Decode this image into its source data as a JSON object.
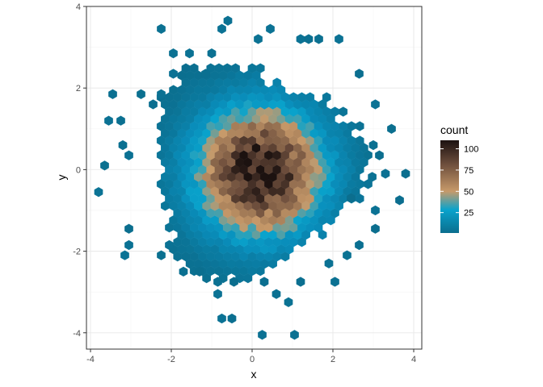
{
  "chart_data": {
    "type": "hexbin",
    "xlabel": "x",
    "ylabel": "y",
    "xlim": [
      -4.1,
      4.2
    ],
    "ylim": [
      -4.4,
      4.0
    ],
    "x_ticks": [
      -4,
      -2,
      0,
      2,
      4
    ],
    "y_ticks": [
      -4,
      -2,
      0,
      2,
      4
    ],
    "x_tick_labels": [
      "-4",
      "-2",
      "0",
      "2",
      "4"
    ],
    "y_tick_labels": [
      "-4",
      "-2",
      "0",
      "2",
      "4"
    ],
    "grid": true,
    "legend": {
      "title": "count",
      "placement": "right",
      "min": 1,
      "max": 110,
      "breaks": [
        25,
        50,
        75,
        100
      ],
      "break_labels": [
        "25",
        "50",
        "75",
        "100"
      ]
    },
    "colors": {
      "low": "#0b6e8e",
      "mid_low": "#09a3cc",
      "mid": "#c79a6a",
      "mid_high": "#6b4c3b",
      "high": "#1c1210"
    },
    "peak": {
      "x": 0.2,
      "y": -0.05,
      "count": 110
    },
    "hex_width": 0.205,
    "outlier_hexes": [
      [
        -2.25,
        3.45
      ],
      [
        -0.6,
        3.65
      ],
      [
        0.45,
        3.45
      ],
      [
        0.15,
        3.2
      ],
      [
        -0.75,
        3.45
      ],
      [
        1.2,
        3.2
      ],
      [
        1.65,
        3.2
      ],
      [
        2.15,
        3.2
      ],
      [
        1.4,
        3.2
      ],
      [
        -1.95,
        2.85
      ],
      [
        -1.55,
        2.85
      ],
      [
        -1.0,
        2.85
      ],
      [
        2.65,
        2.35
      ],
      [
        -1.15,
        2.35
      ],
      [
        -1.95,
        2.35
      ],
      [
        -3.45,
        1.85
      ],
      [
        -2.25,
        1.85
      ],
      [
        -2.75,
        1.85
      ],
      [
        -2.45,
        1.6
      ],
      [
        3.05,
        1.6
      ],
      [
        -3.55,
        1.2
      ],
      [
        -3.25,
        1.2
      ],
      [
        3.45,
        1.0
      ],
      [
        -3.2,
        0.6
      ],
      [
        3.0,
        0.6
      ],
      [
        -3.05,
        0.35
      ],
      [
        -3.65,
        0.1
      ],
      [
        3.15,
        0.35
      ],
      [
        3.3,
        -0.1
      ],
      [
        3.8,
        -0.1
      ],
      [
        -3.8,
        -0.55
      ],
      [
        2.45,
        -0.7
      ],
      [
        3.65,
        -0.75
      ],
      [
        3.05,
        -1.0
      ],
      [
        -3.05,
        -1.45
      ],
      [
        3.05,
        -1.45
      ],
      [
        -3.05,
        -1.85
      ],
      [
        -3.15,
        -2.1
      ],
      [
        -2.05,
        -1.85
      ],
      [
        -2.25,
        -2.1
      ],
      [
        2.65,
        -1.85
      ],
      [
        2.35,
        -2.1
      ],
      [
        1.9,
        -2.3
      ],
      [
        -1.3,
        -2.5
      ],
      [
        -1.7,
        -2.5
      ],
      [
        -0.85,
        -2.75
      ],
      [
        -0.45,
        -2.75
      ],
      [
        0.3,
        -2.75
      ],
      [
        1.2,
        -2.75
      ],
      [
        2.05,
        -2.75
      ],
      [
        0.6,
        -3.05
      ],
      [
        -0.85,
        -3.05
      ],
      [
        0.9,
        -3.25
      ],
      [
        -0.75,
        -3.65
      ],
      [
        -0.5,
        -3.65
      ],
      [
        0.25,
        -4.05
      ],
      [
        1.05,
        -4.05
      ]
    ]
  }
}
